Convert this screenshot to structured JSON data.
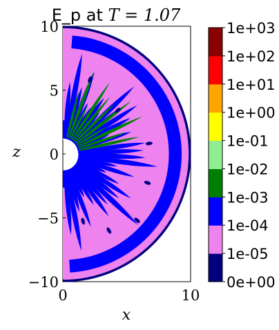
{
  "chart_data": {
    "type": "heatmap",
    "title_prefix": "E_p at ",
    "title_math": "T = 1.07",
    "xlabel": "x",
    "ylabel": "z",
    "xlim": [
      0,
      10
    ],
    "ylim": [
      -10,
      10
    ],
    "x_ticks": [
      {
        "value": 0,
        "label": "0"
      },
      {
        "value": 10,
        "label": "10"
      }
    ],
    "y_ticks": [
      {
        "value": 10,
        "label": "10"
      },
      {
        "value": 5,
        "label": "5"
      },
      {
        "value": 0,
        "label": "0"
      },
      {
        "value": -5,
        "label": "−5"
      },
      {
        "value": -10,
        "label": "−10"
      }
    ],
    "domain": {
      "inner_radius": 1.2,
      "outer_radius": 10
    },
    "colorbar": {
      "scale": "log",
      "labels": [
        "0e+00",
        "1e-05",
        "1e-04",
        "1e-03",
        "1e-02",
        "1e-01",
        "1e+00",
        "1e+01",
        "1e+02",
        "1e+03"
      ],
      "colors": [
        "#000080",
        "#ee82ee",
        "#0000ff",
        "#008000",
        "#90ee90",
        "#ffff00",
        "#ffa500",
        "#ff0000",
        "#8b0000"
      ]
    },
    "regions": [
      {
        "level": "1e-05 to 1e-04",
        "color": "#ee82ee",
        "area": "background of most of the half-disk, widest near outer edge"
      },
      {
        "level": "1e-04 to 1e-03",
        "color": "#0000ff",
        "area": "outer shell band and radial finger pattern around the inner boundary"
      },
      {
        "level": "1e-03 to 1e-02",
        "color": "#008000",
        "area": "narrow radial streaks near the inner boundary, upper half"
      },
      {
        "level": "0e+00 to 1e-05",
        "color": "#000080",
        "area": "thin outer rim and scattered small patches"
      }
    ]
  }
}
